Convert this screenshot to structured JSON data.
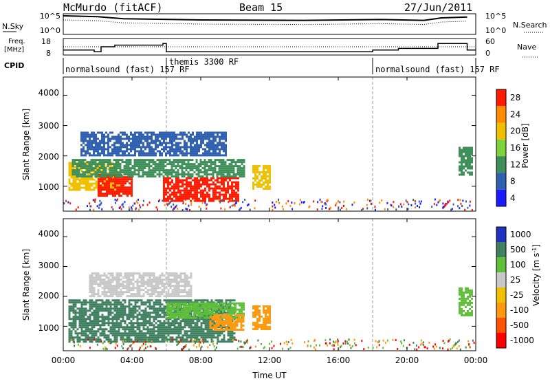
{
  "header": {
    "station": "McMurdo (fitACF)",
    "beam": "Beam 15",
    "date": "27/Jun/2011"
  },
  "top_panels": {
    "nsky_label": "N.Sky",
    "nsky_ticks": [
      "10^5",
      "10^0"
    ],
    "nsearch_label": "N.Search",
    "nsearch_ticks": [
      "10^5",
      "10^0"
    ],
    "freq_label": "Freq.",
    "freq_unit": "[MHz]",
    "freq_ticks": [
      "18",
      "8"
    ],
    "nave_label": "Nave",
    "nave_ticks": [
      "60",
      "0"
    ],
    "cpid_label": "CPID",
    "cpid_segments": [
      {
        "text": "normalsound (fast) 157 RF",
        "start_h": 0.0,
        "end_h": 6.0
      },
      {
        "text": "themis 3300 RF",
        "start_h": 6.0,
        "end_h": 18.0
      },
      {
        "text": "normalsound (fast) 157 RF",
        "start_h": 18.0,
        "end_h": 24.0
      }
    ]
  },
  "x_axis": {
    "ticks": [
      "00:00",
      "04:00",
      "08:00",
      "12:00",
      "16:00",
      "20:00",
      "00:00"
    ],
    "label": "Time UT"
  },
  "power_panel": {
    "ylabel": "Slant Range [km]",
    "yticks": [
      "4000",
      "3000",
      "2000",
      "1000"
    ],
    "colorbar_label": "Power [dB]",
    "colorbar_ticks": [
      "28",
      "24",
      "20",
      "16",
      "12",
      "8",
      "4"
    ]
  },
  "velocity_panel": {
    "ylabel": "Slant Range [km]",
    "yticks": [
      "4000",
      "3000",
      "2000",
      "1000"
    ],
    "colorbar_label": "Velocity [m s",
    "colorbar_label_sup": "-1",
    "colorbar_ticks": [
      "1000",
      "500",
      "100",
      "25",
      "-25",
      "-100",
      "-500",
      "-1000"
    ]
  },
  "chart_data": {
    "type": "heatmap",
    "title": "McMurdo (fitACF) Beam 15 27/Jun/2011",
    "xlabel": "Time UT",
    "x_unit": "hours UT",
    "xlim": [
      0,
      24
    ],
    "ylabel": "Slant Range [km]",
    "ylim": [
      180,
      4600
    ],
    "grid": false,
    "mode_change_times_h": [
      6.0,
      18.0
    ],
    "power_colorscale": [
      {
        "label": "4",
        "color": "#1a1aff"
      },
      {
        "label": "8",
        "color": "#2f5fb0"
      },
      {
        "label": "12",
        "color": "#3f8f5a"
      },
      {
        "label": "16",
        "color": "#7dd23a"
      },
      {
        "label": "20",
        "color": "#f0c000"
      },
      {
        "label": "24",
        "color": "#ff8c00"
      },
      {
        "label": "28",
        "color": "#ff1a00"
      }
    ],
    "velocity_colorscale": [
      {
        "label": "1000",
        "color": "#2030c0"
      },
      {
        "label": "500",
        "color": "#3f8060"
      },
      {
        "label": "100",
        "color": "#5fbe3a"
      },
      {
        "label": "25",
        "color": "#c8c8c8"
      },
      {
        "label": "-25",
        "color": "#f0c000"
      },
      {
        "label": "-100",
        "color": "#ff9a10"
      },
      {
        "label": "-500",
        "color": "#ff5000"
      },
      {
        "label": "-1000",
        "color": "#ff0000"
      }
    ],
    "nsky_approx": [
      {
        "t": 0.0,
        "v": 4.5
      },
      {
        "t": 2.0,
        "v": 4.3
      },
      {
        "t": 3.5,
        "v": 3.8
      },
      {
        "t": 8.0,
        "v": 3.5
      },
      {
        "t": 14.0,
        "v": 3.4
      },
      {
        "t": 18.5,
        "v": 3.6
      },
      {
        "t": 21.0,
        "v": 3.4
      },
      {
        "t": 22.0,
        "v": 4.0
      },
      {
        "t": 23.5,
        "v": 4.2
      }
    ],
    "freq_mhz_approx": [
      {
        "t": 0.0,
        "v": 11
      },
      {
        "t": 1.8,
        "v": 10
      },
      {
        "t": 2.2,
        "v": 13
      },
      {
        "t": 3.0,
        "v": 14
      },
      {
        "t": 5.8,
        "v": 15
      },
      {
        "t": 6.0,
        "v": 10
      },
      {
        "t": 18.0,
        "v": 11
      },
      {
        "t": 19.5,
        "v": 12
      },
      {
        "t": 21.8,
        "v": 15
      },
      {
        "t": 23.5,
        "v": 11
      }
    ],
    "power_patches_db": [
      {
        "t0": 0.3,
        "t1": 3.2,
        "r0": 900,
        "r1": 1800,
        "level": 20
      },
      {
        "t0": 2.0,
        "t1": 4.0,
        "r0": 700,
        "r1": 1400,
        "level": 28
      },
      {
        "t0": 5.8,
        "t1": 10.2,
        "r0": 500,
        "r1": 1300,
        "level": 28
      },
      {
        "t0": 0.5,
        "t1": 10.5,
        "r0": 1300,
        "r1": 1900,
        "level": 14
      },
      {
        "t0": 1.0,
        "t1": 9.5,
        "r0": 2000,
        "r1": 2800,
        "level": 8
      },
      {
        "t0": 11.0,
        "t1": 12.0,
        "r0": 900,
        "r1": 1700,
        "level": 20
      },
      {
        "t0": 23.0,
        "t1": 23.8,
        "r0": 1400,
        "r1": 2300,
        "level": 12
      }
    ],
    "velocity_patches_ms": [
      {
        "t0": 0.3,
        "t1": 10.0,
        "r0": 500,
        "r1": 1900,
        "level": 500
      },
      {
        "t0": 1.5,
        "t1": 7.5,
        "r0": 2000,
        "r1": 2800,
        "level": 25
      },
      {
        "t0": 6.0,
        "t1": 10.5,
        "r0": 1300,
        "r1": 1800,
        "level": 100
      },
      {
        "t0": 8.5,
        "t1": 10.5,
        "r0": 900,
        "r1": 1400,
        "level": -100
      },
      {
        "t0": 11.0,
        "t1": 12.0,
        "r0": 900,
        "r1": 1700,
        "level": -100
      },
      {
        "t0": 23.0,
        "t1": 23.8,
        "r0": 1400,
        "r1": 2300,
        "level": 100
      }
    ]
  }
}
